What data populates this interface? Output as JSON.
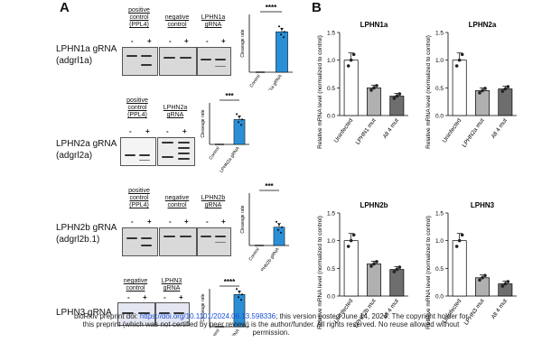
{
  "panel_a": {
    "letter": "A",
    "rows": [
      {
        "grna": "LPHN1a gRNA",
        "gene": "(adgrl1a)",
        "headers": [
          {
            "line1": "positive",
            "line2": "control",
            "line3": "(PPL4)"
          },
          {
            "line1": "negative",
            "line2": "control",
            "line3": ""
          },
          {
            "line1": "LPHN1a",
            "line2": "gRNA",
            "line3": ""
          }
        ],
        "minus": "-",
        "plus": "+",
        "sig": "****",
        "ylabel": "Cleavage rate",
        "categories": [
          "Control",
          "LPHN1a gRNA"
        ]
      },
      {
        "grna": "LPHN2a gRNA",
        "gene": "(adgrl2a)",
        "headers": [
          {
            "line1": "positive",
            "line2": "control",
            "line3": "(PPL4)"
          },
          {
            "line1": "LPHN2a",
            "line2": "gRNA",
            "line3": ""
          }
        ],
        "minus": "-",
        "plus": "+",
        "sig": "***",
        "ylabel": "Cleavage rate",
        "categories": [
          "Control",
          "LPHN2a gRNA"
        ]
      },
      {
        "grna": "LPHN2b gRNA",
        "gene": "(adgrl2b.1)",
        "headers": [
          {
            "line1": "positive",
            "line2": "control",
            "line3": "(PPL4)"
          },
          {
            "line1": "negative",
            "line2": "control",
            "line3": ""
          },
          {
            "line1": "LPHN2b",
            "line2": "gRNA",
            "line3": ""
          }
        ],
        "minus": "-",
        "plus": "+",
        "sig": "***",
        "ylabel": "Cleavage rate",
        "categories": [
          "Control",
          "LPHN2b gRNA"
        ]
      },
      {
        "grna": "LPHN3 gRNA",
        "gene": "",
        "headers": [
          {
            "line1": "negative",
            "line2": "control",
            "line3": ""
          },
          {
            "line1": "LPHN3",
            "line2": "gRNA",
            "line3": ""
          }
        ],
        "minus": "-",
        "plus": "+",
        "sig": "****",
        "ylabel": "Cleavage rate",
        "categories": [
          "Control",
          "LPHN3 gRNA"
        ]
      }
    ]
  },
  "panel_b": {
    "letter": "B",
    "ylabel": "Relative mRNA level (normalized to control)"
  },
  "footer": {
    "line1_pre": "bioRxiv preprint doi: ",
    "doi": "https://doi.org/10.1101/2024.06.13.598336",
    "line1_post": "; this version posted June 14, 2024. The copyright holder for",
    "line2": "this preprint (which was not certified by peer review) is the author/funder. All rights reserved. No reuse allowed without",
    "line3": "permission."
  },
  "chart_data": [
    {
      "type": "bar",
      "title": "",
      "categories": [
        "Control",
        "LPHN1a gRNA"
      ],
      "values": [
        0.0,
        0.7
      ],
      "ylim": [
        0,
        1.0
      ],
      "yticks": [],
      "color": "#2b8fd6"
    },
    {
      "type": "bar",
      "title": "",
      "categories": [
        "Control",
        "LPHN2a gRNA"
      ],
      "values": [
        0.0,
        0.6
      ],
      "ylim": [
        0,
        1.0
      ],
      "yticks": [],
      "color": "#2b8fd6"
    },
    {
      "type": "bar",
      "title": "",
      "categories": [
        "Control",
        "LPHN2b gRNA"
      ],
      "values": [
        0.0,
        0.35
      ],
      "ylim": [
        0,
        1.0
      ],
      "yticks": [],
      "color": "#2b8fd6"
    },
    {
      "type": "bar",
      "title": "",
      "categories": [
        "Control",
        "LPHN3 gRNA"
      ],
      "values": [
        0.0,
        0.85
      ],
      "ylim": [
        0,
        1.0
      ],
      "yticks": [],
      "color": "#2b8fd6"
    },
    {
      "type": "bar",
      "title": "LPHN1a",
      "categories": [
        "Uninfected",
        "LPHN1 mut",
        "All 4 mut"
      ],
      "values": [
        1.0,
        0.5,
        0.35
      ],
      "ylim": [
        0,
        1.5
      ],
      "yticks": [
        "0.0",
        "0.5",
        "1.0",
        "1.5"
      ],
      "ylabel": "Relative mRNA level (normalized to control)",
      "colors": [
        "#ffffff",
        "#b0b0b0",
        "#6e6e6e"
      ]
    },
    {
      "type": "bar",
      "title": "LPHN2a",
      "categories": [
        "Uninfected",
        "LPHN2a mut",
        "All 4 mut"
      ],
      "values": [
        1.0,
        0.45,
        0.48
      ],
      "ylim": [
        0,
        1.5
      ],
      "yticks": [
        "0.0",
        "0.5",
        "1.0",
        "1.5"
      ],
      "ylabel": "Relative mRNA level (normalized to control)",
      "colors": [
        "#ffffff",
        "#b0b0b0",
        "#6e6e6e"
      ]
    },
    {
      "type": "bar",
      "title": "LPHN2b",
      "categories": [
        "Uninfected",
        "LPHN2b mut",
        "All 4 mut"
      ],
      "values": [
        1.0,
        0.58,
        0.48
      ],
      "ylim": [
        0,
        1.5
      ],
      "yticks": [
        "0.0",
        "0.5",
        "1.0",
        "1.5"
      ],
      "ylabel": "Relative mRNA level (normalized to control)",
      "colors": [
        "#ffffff",
        "#b0b0b0",
        "#6e6e6e"
      ]
    },
    {
      "type": "bar",
      "title": "LPHN3",
      "categories": [
        "Uninfected",
        "LPHN3 mut",
        "All 4 mut"
      ],
      "values": [
        1.0,
        0.33,
        0.22
      ],
      "ylim": [
        0,
        1.5
      ],
      "yticks": [
        "0.0",
        "0.5",
        "1.0",
        "1.5"
      ],
      "ylabel": "Relative mRNA level (normalized to control)",
      "colors": [
        "#ffffff",
        "#b0b0b0",
        "#6e6e6e"
      ]
    }
  ]
}
